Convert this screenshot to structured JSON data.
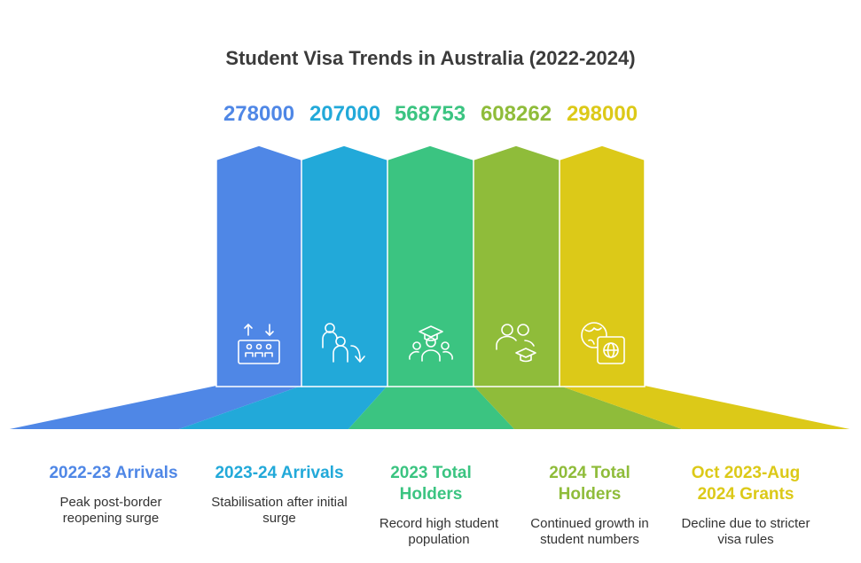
{
  "title": "Student Visa Trends in Australia (2022-2024)",
  "items": [
    {
      "value": "278000",
      "label": "2022-23 Arrivals",
      "description": "Peak post-border reopening surge",
      "color": "#4f87e6",
      "icon": "arrivals-board-icon"
    },
    {
      "value": "207000",
      "label": "2023-24 Arrivals",
      "description": "Stabilisation after initial surge",
      "color": "#22a9d9",
      "icon": "people-decline-icon"
    },
    {
      "value": "568753",
      "label": "2023 Total Holders",
      "description": "Record high student population",
      "color": "#3bc481",
      "icon": "graduate-group-icon"
    },
    {
      "value": "608262",
      "label": "2024 Total Holders",
      "description": "Continued growth in student numbers",
      "color": "#8fbc3a",
      "icon": "students-cap-icon"
    },
    {
      "value": "298000",
      "label": "Oct 2023-Aug 2024 Grants",
      "description": "Decline due to stricter visa rules",
      "color": "#dcc918",
      "icon": "globe-passport-icon"
    }
  ]
}
